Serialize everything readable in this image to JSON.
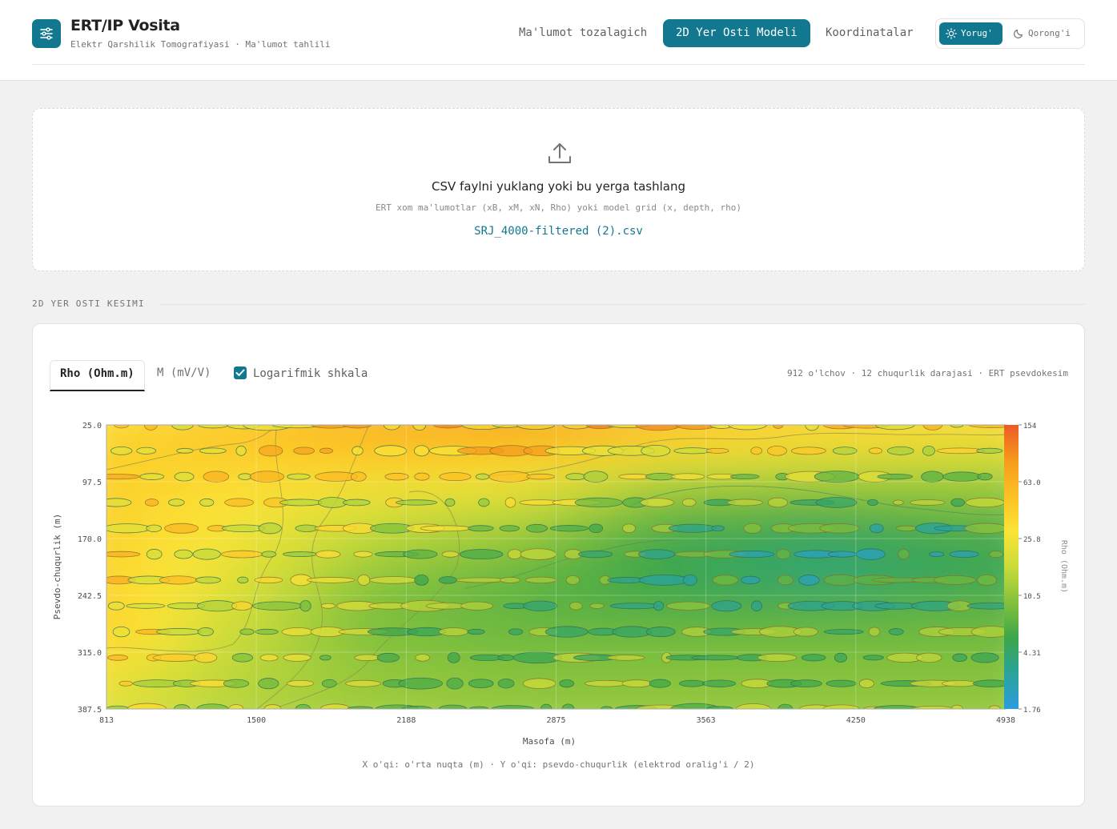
{
  "app": {
    "title": "ERT/IP Vosita",
    "subtitle": "Elektr Qarshilik Tomografiyasi · Ma'lumot tahlili",
    "logo_icon": "sliders-icon"
  },
  "nav": {
    "tabs": [
      {
        "label": "Ma'lumot tozalagich",
        "active": false
      },
      {
        "label": "2D Yer Osti Modeli",
        "active": true
      },
      {
        "label": "Koordinatalar",
        "active": false
      }
    ]
  },
  "theme": {
    "light_label": "Yorug'",
    "dark_label": "Qorong'i",
    "selected": "light"
  },
  "upload": {
    "icon": "upload-icon",
    "title": "CSV faylni yuklang yoki bu yerga tashlang",
    "hint": "ERT xom ma'lumotlar (xB, xM, xN, Rho) yoki model grid (x, depth, rho)",
    "file_name": "SRJ_4000-filtered (2).csv"
  },
  "section": {
    "label": "2D YER OSTI KESIMI"
  },
  "panel": {
    "tabs": [
      {
        "label": "Rho (Ohm.m)",
        "active": true
      },
      {
        "label": "M (mV/V)",
        "active": false
      }
    ],
    "log_scale_label": "Logarifmik shkala",
    "log_scale_checked": true,
    "stats": "912 o'lchov · 12 chuqurlik darajasi · ERT psevdokesim",
    "caption": "X o'qi: o'rta nuqta (m) · Y o'qi: psevdo-chuqurlik (elektrod oralig'i / 2)"
  },
  "chart_data": {
    "type": "heatmap",
    "xlabel": "Masofa (m)",
    "ylabel": "Psevdo-chuqurlik (m)",
    "colorbar_label": "Rho (Ohm.m)",
    "xlim": [
      813,
      4938
    ],
    "ylim": [
      25.0,
      387.5
    ],
    "y_inverted": true,
    "log_color_scale": true,
    "x_ticks": [
      "813",
      "1500",
      "2188",
      "2875",
      "3563",
      "4250",
      "4938"
    ],
    "y_ticks": [
      "25.0",
      "97.5",
      "170.0",
      "242.5",
      "315.0",
      "387.5"
    ],
    "colorbar_ticks": [
      "154",
      "63.0",
      "25.8",
      "10.5",
      "4.31",
      "1.76"
    ],
    "colorbar_range": [
      1.76,
      154
    ],
    "colormap": [
      "#2b9ce0",
      "#2aa39a",
      "#3da64a",
      "#82c13c",
      "#c9db3a",
      "#fbe437",
      "#fcc124",
      "#f59b1c",
      "#ee5a25"
    ],
    "depth_levels": [
      25,
      58,
      91,
      124,
      157,
      190,
      223,
      256,
      289,
      322,
      355,
      387.5
    ],
    "x_columns": [
      813,
      1500,
      2188,
      2875,
      3563,
      4250,
      4938
    ],
    "rho_grid": [
      [
        30,
        45,
        60,
        75,
        55,
        40,
        35
      ],
      [
        40,
        42,
        55,
        50,
        30,
        25,
        22
      ],
      [
        42,
        35,
        30,
        28,
        14,
        13,
        12
      ],
      [
        40,
        30,
        22,
        18,
        9,
        8,
        10
      ],
      [
        42,
        28,
        16,
        12,
        6,
        5,
        6
      ],
      [
        40,
        25,
        13,
        9,
        5,
        4,
        5
      ],
      [
        42,
        22,
        10,
        7,
        5,
        4,
        5
      ],
      [
        45,
        20,
        9,
        7,
        6,
        6,
        7
      ],
      [
        48,
        18,
        9,
        8,
        8,
        8,
        8
      ],
      [
        36,
        16,
        10,
        9,
        9,
        9,
        9
      ],
      [
        28,
        15,
        11,
        10,
        10,
        10,
        10
      ],
      [
        22,
        14,
        12,
        11,
        11,
        11,
        11
      ]
    ]
  }
}
